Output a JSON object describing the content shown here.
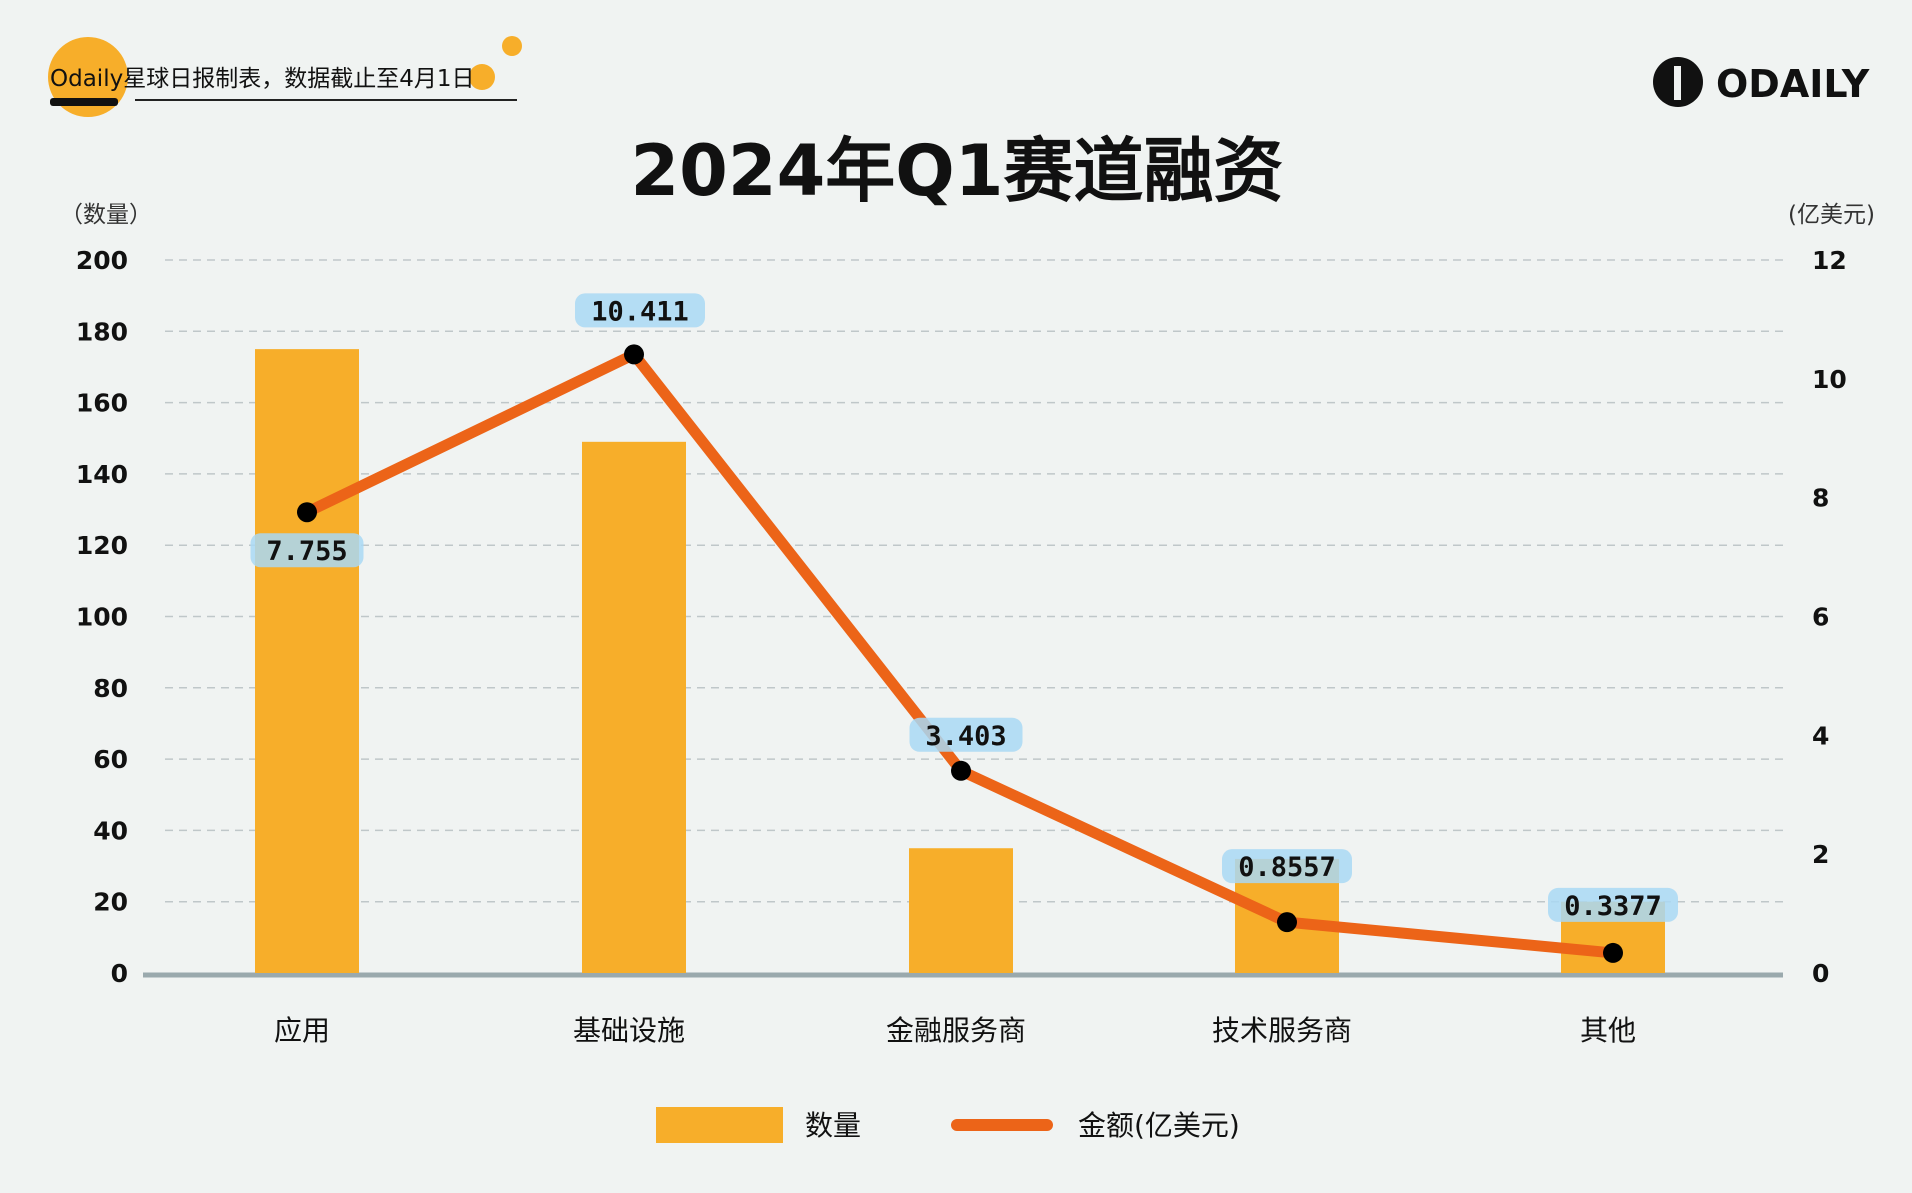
{
  "header": {
    "source_note": "Odaily星球日报制表，数据截止至4月1日",
    "logo_text": "ODAILY"
  },
  "colors": {
    "bar": "#f7ae2a",
    "line": "#ec6418",
    "dot": "#000000",
    "label_bg": "#a9d8f5",
    "grid": "#bfc7c9",
    "axis": "#9aa9ad"
  },
  "chart_data": {
    "type": "bar+line",
    "title": "2024年Q1赛道融资",
    "categories": [
      "应用",
      "基础设施",
      "金融服务商",
      "技术服务商",
      "其他"
    ],
    "y_left": {
      "label": "（数量）",
      "range": [
        0,
        200
      ],
      "ticks": [
        0,
        20,
        40,
        60,
        80,
        100,
        120,
        140,
        160,
        180,
        200
      ]
    },
    "y_right": {
      "label": "(亿美元)",
      "range": [
        0,
        12
      ],
      "ticks": [
        0,
        2,
        4,
        6,
        8,
        10,
        12
      ]
    },
    "grid": true,
    "legend_position": "bottom",
    "series": [
      {
        "name": "数量",
        "type": "bar",
        "axis": "left",
        "values": [
          175,
          149,
          35,
          32,
          20
        ]
      },
      {
        "name": "金额(亿美元)",
        "type": "line",
        "axis": "right",
        "values": [
          7.755,
          10.411,
          3.403,
          0.8557,
          0.3377
        ],
        "labels": [
          "7.755",
          "10.411",
          "3.403",
          "0.8557",
          "0.3377"
        ]
      }
    ]
  }
}
